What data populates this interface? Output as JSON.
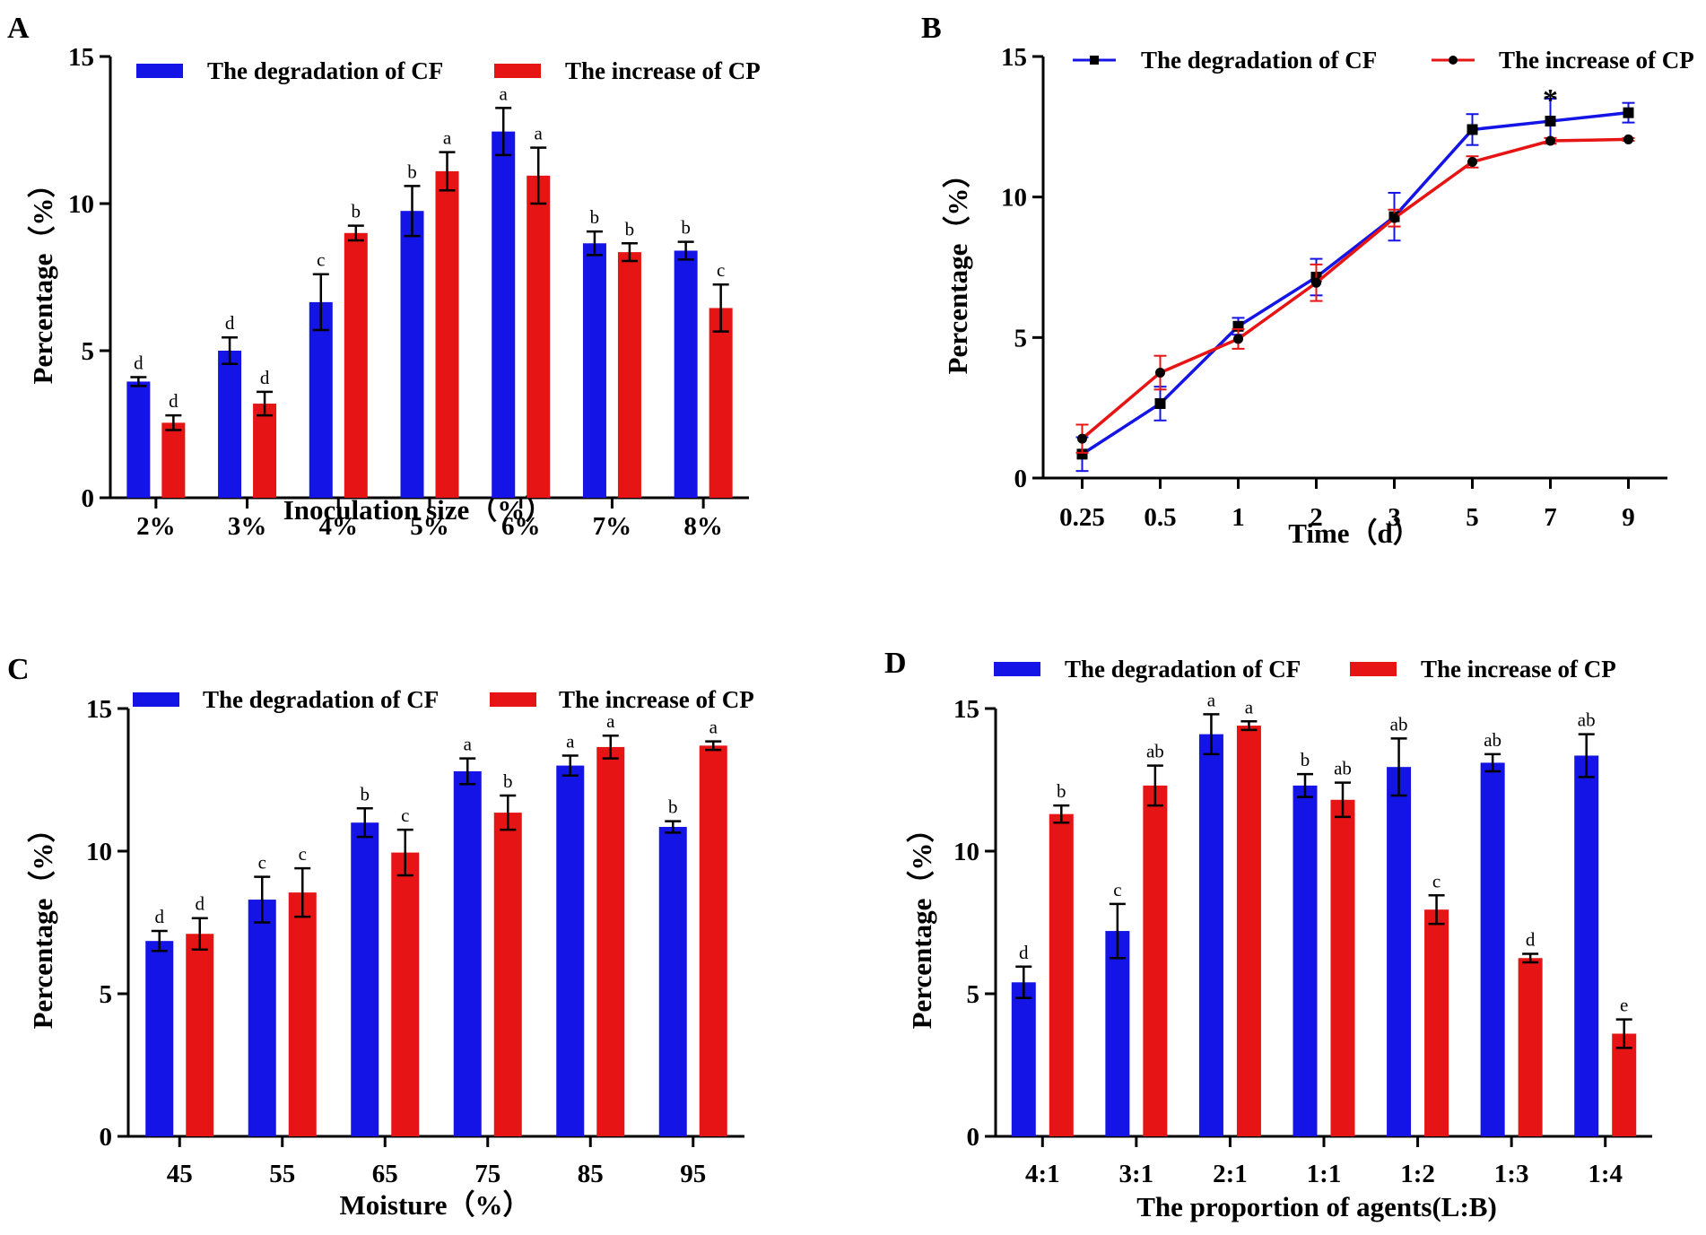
{
  "figure": {
    "colors": {
      "cf": "#1414e6",
      "cp": "#e61414",
      "axis": "#000000"
    },
    "legend": {
      "cf": "The degradation of CF",
      "cp": "The increase of CP"
    }
  },
  "chart_data": [
    {
      "panel": "A",
      "type": "bar",
      "title": "",
      "xlabel": "Inoculation size（%）",
      "ylabel": "Percentage（%）",
      "ylim": [
        0,
        15
      ],
      "yticks": [
        0,
        5,
        10,
        15
      ],
      "categories": [
        "2%",
        "3%",
        "4%",
        "5%",
        "6%",
        "7%",
        "8%"
      ],
      "legend_position": "top",
      "series": [
        {
          "name": "The degradation of CF",
          "color": "#1414e6",
          "values": [
            3.95,
            5.0,
            6.65,
            9.75,
            12.45,
            8.65,
            8.4
          ],
          "errors": [
            0.15,
            0.45,
            0.95,
            0.85,
            0.8,
            0.4,
            0.3
          ],
          "labels": [
            "d",
            "d",
            "c",
            "b",
            "a",
            "b",
            "b"
          ]
        },
        {
          "name": "The increase of CP",
          "color": "#e61414",
          "values": [
            2.55,
            3.2,
            9.0,
            11.1,
            10.95,
            8.35,
            6.45
          ],
          "errors": [
            0.25,
            0.4,
            0.25,
            0.65,
            0.95,
            0.3,
            0.8
          ],
          "labels": [
            "d",
            "d",
            "b",
            "a",
            "a",
            "b",
            "c"
          ]
        }
      ]
    },
    {
      "panel": "B",
      "type": "line",
      "title": "",
      "xlabel": "Time（d）",
      "ylabel": "Percentage（%）",
      "ylim": [
        0,
        15
      ],
      "yticks": [
        0,
        5,
        10,
        15
      ],
      "categories": [
        "0.25",
        "0.5",
        "1",
        "2",
        "3",
        "5",
        "7",
        "9"
      ],
      "legend_position": "top",
      "annotation": {
        "text": "*",
        "category": "7"
      },
      "series": [
        {
          "name": "The degradation of CF",
          "color": "#1414e6",
          "marker": "square",
          "values": [
            0.85,
            2.65,
            5.4,
            7.15,
            9.3,
            12.4,
            12.7,
            13.0
          ],
          "errors": [
            0.6,
            0.6,
            0.3,
            0.65,
            0.85,
            0.55,
            0.8,
            0.35
          ]
        },
        {
          "name": "The increase of CP",
          "color": "#e61414",
          "marker": "circle",
          "values": [
            1.4,
            3.75,
            4.95,
            6.95,
            9.25,
            11.25,
            12.0,
            12.05
          ],
          "errors": [
            0.5,
            0.6,
            0.35,
            0.65,
            0.3,
            0.2,
            0.1,
            0.05
          ]
        }
      ]
    },
    {
      "panel": "C",
      "type": "bar",
      "title": "",
      "xlabel": "Moisture（%）",
      "ylabel": "Percentage（%）",
      "ylim": [
        0,
        15
      ],
      "yticks": [
        0,
        5,
        10,
        15
      ],
      "categories": [
        "45",
        "55",
        "65",
        "75",
        "85",
        "95"
      ],
      "legend_position": "top",
      "series": [
        {
          "name": "The degradation of CF",
          "color": "#1414e6",
          "values": [
            6.85,
            8.3,
            11.0,
            12.8,
            13.0,
            10.85
          ],
          "errors": [
            0.35,
            0.8,
            0.5,
            0.45,
            0.35,
            0.2
          ],
          "labels": [
            "d",
            "c",
            "b",
            "a",
            "a",
            "b"
          ]
        },
        {
          "name": "The increase of CP",
          "color": "#e61414",
          "values": [
            7.1,
            8.55,
            9.95,
            11.35,
            13.65,
            13.7
          ],
          "errors": [
            0.55,
            0.85,
            0.8,
            0.6,
            0.4,
            0.15
          ],
          "labels": [
            "d",
            "c",
            "c",
            "b",
            "a",
            "a"
          ]
        }
      ]
    },
    {
      "panel": "D",
      "type": "bar",
      "title": "",
      "xlabel": "The proportion of agents(L:B)",
      "ylabel": "Percentage（%）",
      "ylim": [
        0,
        15
      ],
      "yticks": [
        0,
        5,
        10,
        15
      ],
      "categories": [
        "4:1",
        "3:1",
        "2:1",
        "1:1",
        "1:2",
        "1:3",
        "1:4"
      ],
      "legend_position": "top",
      "series": [
        {
          "name": "The degradation of CF",
          "color": "#1414e6",
          "values": [
            5.4,
            7.2,
            14.1,
            12.3,
            12.95,
            13.1,
            13.35
          ],
          "errors": [
            0.55,
            0.95,
            0.7,
            0.4,
            1.0,
            0.3,
            0.75
          ],
          "labels": [
            "d",
            "c",
            "a",
            "b",
            "ab",
            "ab",
            "ab"
          ]
        },
        {
          "name": "The increase of CP",
          "color": "#e61414",
          "values": [
            11.3,
            12.3,
            14.4,
            11.8,
            7.95,
            6.25,
            3.6
          ],
          "errors": [
            0.3,
            0.7,
            0.15,
            0.6,
            0.5,
            0.15,
            0.5
          ],
          "labels": [
            "b",
            "ab",
            "a",
            "ab",
            "c",
            "d",
            "e"
          ]
        }
      ]
    }
  ]
}
